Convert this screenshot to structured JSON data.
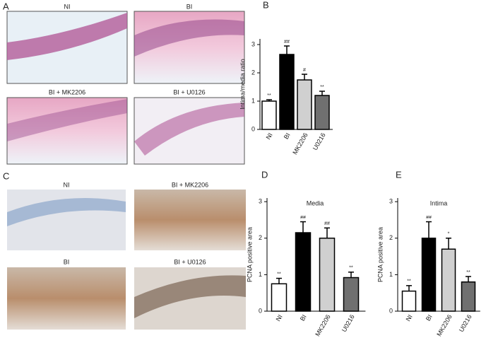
{
  "panels": {
    "a": {
      "letter": "A",
      "captions": [
        "NI",
        "BI",
        "BI + MK2206",
        "BI + U0126"
      ]
    },
    "c": {
      "letter": "C",
      "captions": [
        "NI",
        "BI + MK2206",
        "BI",
        "BI + U0126"
      ]
    }
  },
  "chart_data": [
    {
      "type": "bar",
      "letter": "B",
      "ylabel": "Intima/media ratio",
      "categories": [
        "NI",
        "BI",
        "MK2206",
        "U0216"
      ],
      "values": [
        1.0,
        2.65,
        1.75,
        1.2
      ],
      "errors": [
        0.05,
        0.3,
        0.2,
        0.15
      ],
      "annotations": [
        "**",
        "##",
        "#",
        "**"
      ],
      "colors": [
        "#ffffff",
        "#000000",
        "#d0d0d0",
        "#707070"
      ],
      "ylim": [
        0,
        3.2
      ],
      "yticks": [
        0,
        1,
        2,
        3
      ]
    },
    {
      "type": "bar",
      "letter": "D",
      "title": "Media",
      "ylabel": "PCNA positive area",
      "categories": [
        "NI",
        "BI",
        "MK2206",
        "U0216"
      ],
      "values": [
        0.75,
        2.15,
        2.0,
        0.92
      ],
      "errors": [
        0.15,
        0.3,
        0.28,
        0.15
      ],
      "annotations": [
        "**",
        "##",
        "##",
        "**"
      ],
      "colors": [
        "#ffffff",
        "#000000",
        "#d0d0d0",
        "#707070"
      ],
      "ylim": [
        0,
        3.1
      ],
      "yticks": [
        0,
        1,
        2,
        3
      ]
    },
    {
      "type": "bar",
      "letter": "E",
      "title": "Intima",
      "ylabel": "PCNA positive area",
      "categories": [
        "NI",
        "BI",
        "MK2206",
        "U0216"
      ],
      "values": [
        0.55,
        2.0,
        1.7,
        0.8
      ],
      "errors": [
        0.15,
        0.45,
        0.3,
        0.15
      ],
      "annotations": [
        "**",
        "##",
        "*",
        "**"
      ],
      "colors": [
        "#ffffff",
        "#000000",
        "#d0d0d0",
        "#707070"
      ],
      "ylim": [
        0,
        3.1
      ],
      "yticks": [
        0,
        1,
        2,
        3
      ]
    }
  ]
}
